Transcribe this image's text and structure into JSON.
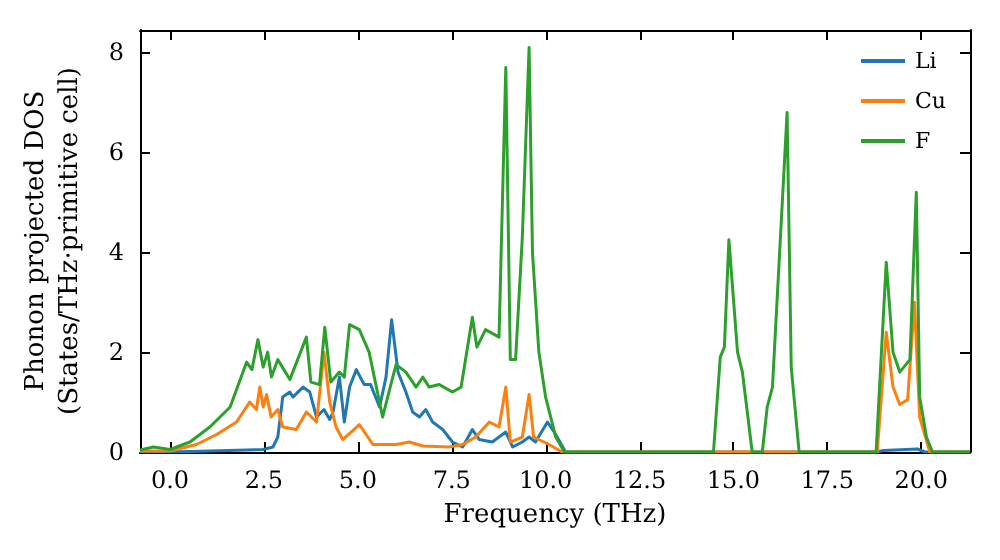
{
  "chart_data": {
    "type": "line",
    "xlabel": "Frequency (THz)",
    "ylabel": "Phonon projected DOS\n(States/THz·primitive cell)",
    "xlim": [
      -0.8,
      21.3
    ],
    "ylim": [
      0,
      8.45
    ],
    "xticks": [
      {
        "value": 0,
        "label": "0.0"
      },
      2.5,
      {
        "value": 5,
        "label": "5.0"
      },
      7.5,
      {
        "value": 10,
        "label": "10.0"
      },
      12.5,
      {
        "value": 15,
        "label": "15.0"
      },
      17.5,
      {
        "value": 20,
        "label": "20.0"
      }
    ],
    "yticks": [
      0,
      2,
      4,
      6,
      8
    ],
    "grid": false,
    "legend": "top right",
    "marker": "none",
    "line_style": "solid",
    "series": [
      {
        "name": "Li",
        "color": "#1f77b4",
        "x": [
          -0.8,
          0,
          1.06,
          2.48,
          2.74,
          2.87,
          3.0,
          3.19,
          3.27,
          3.54,
          3.72,
          3.9,
          4.1,
          4.25,
          4.34,
          4.51,
          4.64,
          4.78,
          4.96,
          5.17,
          5.34,
          5.58,
          5.75,
          5.9,
          6.07,
          6.28,
          6.46,
          6.64,
          6.81,
          6.99,
          7.26,
          7.52,
          7.79,
          8.05,
          8.23,
          8.58,
          8.94,
          9.12,
          9.38,
          9.56,
          9.73,
          10.05,
          10.27,
          10.53,
          18.8,
          19.0,
          19.9,
          20.1,
          21.3
        ],
        "values": [
          0,
          0,
          0.02,
          0.05,
          0.1,
          0.3,
          1.1,
          1.2,
          1.1,
          1.3,
          1.2,
          0.7,
          0.85,
          0.65,
          0.8,
          1.5,
          0.6,
          1.3,
          1.65,
          1.35,
          1.35,
          0.9,
          1.5,
          2.65,
          1.6,
          1.2,
          0.8,
          0.7,
          0.85,
          0.6,
          0.45,
          0.2,
          0.1,
          0.45,
          0.25,
          0.2,
          0.4,
          0.1,
          0.2,
          0.3,
          0.2,
          0.6,
          0.35,
          0,
          0,
          0.03,
          0.06,
          0,
          0
        ]
      },
      {
        "name": "Cu",
        "color": "#ff7f0e",
        "x": [
          -0.8,
          0,
          0.7,
          1.24,
          1.77,
          2.12,
          2.3,
          2.39,
          2.48,
          2.57,
          2.69,
          2.87,
          3.0,
          3.36,
          3.63,
          3.9,
          4.1,
          4.25,
          4.42,
          4.6,
          5.04,
          5.4,
          6.02,
          6.37,
          6.73,
          7.43,
          7.79,
          8.14,
          8.5,
          8.76,
          8.94,
          9.06,
          9.38,
          9.56,
          9.68,
          10.09,
          10.44,
          18.83,
          19.07,
          19.25,
          19.43,
          19.64,
          19.82,
          19.96,
          20.23,
          21.3
        ],
        "values": [
          0.02,
          0.02,
          0.15,
          0.35,
          0.6,
          1.0,
          0.85,
          1.3,
          0.9,
          1.15,
          0.7,
          0.85,
          0.5,
          0.45,
          0.8,
          0.6,
          2.0,
          1.0,
          0.5,
          0.25,
          0.55,
          0.15,
          0.15,
          0.2,
          0.12,
          0.1,
          0.15,
          0.3,
          0.6,
          0.5,
          1.3,
          0.2,
          0.3,
          1.15,
          0.3,
          0.15,
          0,
          0,
          2.4,
          1.3,
          0.95,
          1.05,
          3.0,
          0.7,
          0,
          0
        ]
      },
      {
        "name": "F",
        "color": "#2ca02c",
        "x": [
          -0.8,
          -0.44,
          0,
          0.53,
          1.06,
          1.6,
          2.04,
          2.18,
          2.34,
          2.48,
          2.6,
          2.7,
          2.87,
          3.19,
          3.63,
          3.75,
          3.98,
          4.12,
          4.28,
          4.51,
          4.64,
          4.78,
          5.04,
          5.3,
          5.66,
          5.93,
          6.02,
          6.28,
          6.55,
          6.73,
          6.9,
          7.17,
          7.52,
          7.75,
          8.05,
          8.17,
          8.4,
          8.76,
          8.94,
          9.06,
          9.2,
          9.38,
          9.56,
          9.65,
          9.82,
          10.0,
          10.27,
          10.5,
          14.47,
          14.65,
          14.76,
          14.88,
          15.11,
          15.24,
          15.5,
          15.77,
          15.9,
          16.04,
          16.43,
          16.54,
          16.75,
          18.8,
          19.07,
          19.25,
          19.43,
          19.7,
          19.87,
          19.96,
          20.14,
          20.3,
          21.3
        ],
        "values": [
          0.04,
          0.1,
          0.05,
          0.2,
          0.5,
          0.9,
          1.8,
          1.65,
          2.25,
          1.7,
          2.0,
          1.5,
          1.85,
          1.45,
          2.3,
          1.4,
          1.35,
          2.5,
          1.4,
          1.6,
          1.5,
          2.55,
          2.45,
          2.0,
          0.7,
          1.5,
          1.75,
          1.6,
          1.3,
          1.5,
          1.3,
          1.35,
          1.2,
          1.3,
          2.7,
          2.1,
          2.45,
          2.3,
          7.7,
          1.85,
          1.85,
          4.3,
          8.1,
          4.0,
          2.0,
          1.1,
          0.3,
          0,
          0,
          1.9,
          2.1,
          4.25,
          2.0,
          1.6,
          0,
          0,
          0.9,
          1.3,
          6.8,
          1.7,
          0,
          0,
          3.8,
          2.0,
          1.6,
          1.85,
          5.2,
          1.1,
          0.3,
          0,
          0
        ]
      }
    ]
  }
}
